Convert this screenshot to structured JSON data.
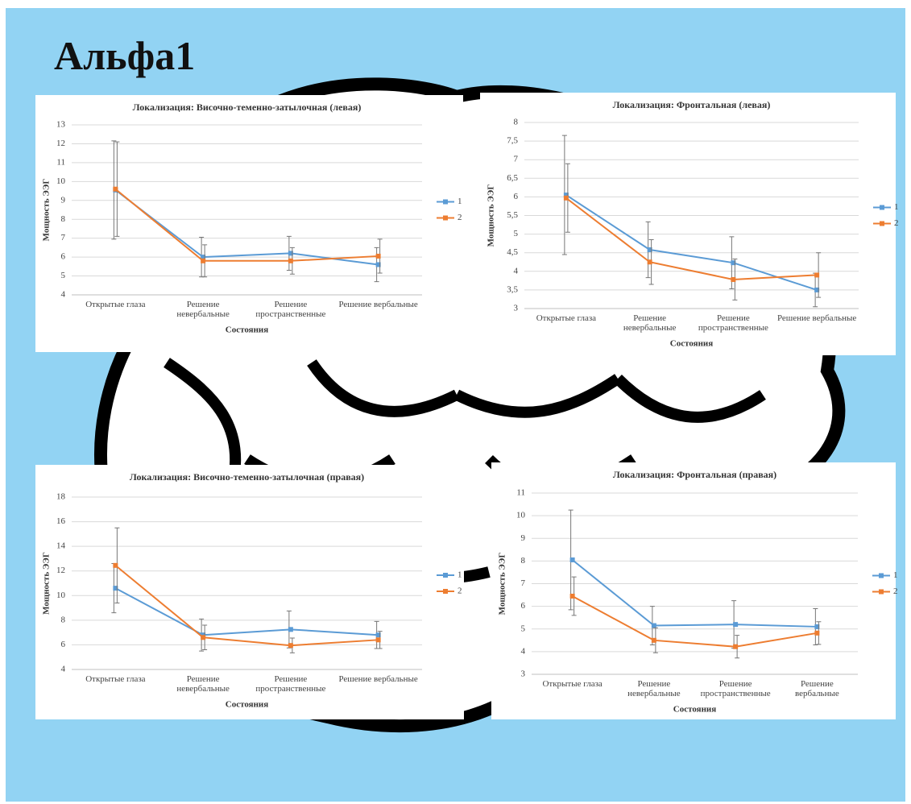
{
  "title": "Альфа1",
  "chart_data": [
    {
      "type": "line",
      "title": "Локализация: Височно-теменно-затылочная (левая)",
      "xlabel": "Состояния",
      "ylabel": "Мощность ЭЭГ",
      "categories": [
        "Открытые глаза",
        "Решение невербальные",
        "Решение пространственные",
        "Решение вербальные"
      ],
      "ylim": [
        4,
        13
      ],
      "yticks": [
        4,
        5,
        6,
        7,
        8,
        9,
        10,
        11,
        12,
        13
      ],
      "grid": true,
      "legend": "right",
      "series": [
        {
          "name": "1",
          "color": "#5b9bd5",
          "values": [
            9.55,
            6.0,
            6.2,
            5.6
          ],
          "errors": [
            2.6,
            1.05,
            0.9,
            0.9
          ]
        },
        {
          "name": "2",
          "color": "#ed7d31",
          "values": [
            9.6,
            5.8,
            5.8,
            6.05
          ],
          "errors": [
            2.5,
            0.85,
            0.7,
            0.9
          ]
        }
      ]
    },
    {
      "type": "line",
      "title": "Локализация: Фронтальная (левая)",
      "xlabel": "Состояния",
      "ylabel": "Мощность ЭЭГ",
      "categories": [
        "Открытые глаза",
        "Решение невербальные",
        "Решение пространственные",
        "Решение вербальные"
      ],
      "ylim": [
        3,
        8
      ],
      "yticks": [
        3,
        {
          "value": 3.5,
          "label": "3,5"
        },
        4,
        {
          "value": 4.5,
          "label": "4,5"
        },
        5,
        {
          "value": 5.5,
          "label": "5,5"
        },
        6,
        {
          "value": 6.5,
          "label": "6,5"
        },
        7,
        {
          "value": 7.5,
          "label": "7,5"
        },
        8
      ],
      "grid": true,
      "legend": "right",
      "series": [
        {
          "name": "1",
          "color": "#5b9bd5",
          "values": [
            6.05,
            4.58,
            4.23,
            3.5
          ],
          "errors": [
            1.6,
            0.75,
            0.7,
            0.45
          ]
        },
        {
          "name": "2",
          "color": "#ed7d31",
          "values": [
            5.97,
            4.25,
            3.78,
            3.9
          ],
          "errors": [
            0.92,
            0.6,
            0.55,
            0.6
          ]
        }
      ]
    },
    {
      "type": "line",
      "title": "Локализация: Височно-теменно-затылочная (правая)",
      "xlabel": "Состояния",
      "ylabel": "Мощность ЭЭГ",
      "categories": [
        "Открытые глаза",
        "Решение невербальные",
        "Решение пространственные",
        "Решение вербальные"
      ],
      "ylim": [
        4,
        18
      ],
      "yticks": [
        4,
        6,
        8,
        10,
        12,
        14,
        16,
        18
      ],
      "grid": true,
      "legend": "right",
      "series": [
        {
          "name": "1",
          "color": "#5b9bd5",
          "values": [
            10.6,
            6.8,
            7.25,
            6.8
          ],
          "errors": [
            2.0,
            1.3,
            1.5,
            1.1
          ]
        },
        {
          "name": "2",
          "color": "#ed7d31",
          "values": [
            12.45,
            6.6,
            5.95,
            6.4
          ],
          "errors": [
            3.05,
            1.0,
            0.6,
            0.7
          ]
        }
      ]
    },
    {
      "type": "line",
      "title": "Локализация: Фронтальная (правая)",
      "xlabel": "Состояния",
      "ylabel": "Мощность ЭЭГ",
      "categories": [
        "Открытые глаза",
        "Решение невербальные",
        "Решение пространственные",
        "Решение вербальные"
      ],
      "ylim": [
        3,
        11
      ],
      "yticks": [
        3,
        4,
        5,
        6,
        7,
        8,
        9,
        10,
        11
      ],
      "grid": true,
      "legend": "right",
      "series": [
        {
          "name": "1",
          "color": "#5b9bd5",
          "values": [
            8.05,
            5.15,
            5.2,
            5.1
          ],
          "errors": [
            2.2,
            0.85,
            1.05,
            0.8
          ]
        },
        {
          "name": "2",
          "color": "#ed7d31",
          "values": [
            6.45,
            4.5,
            4.22,
            4.82
          ],
          "errors": [
            0.85,
            0.55,
            0.5,
            0.5
          ]
        }
      ]
    }
  ]
}
